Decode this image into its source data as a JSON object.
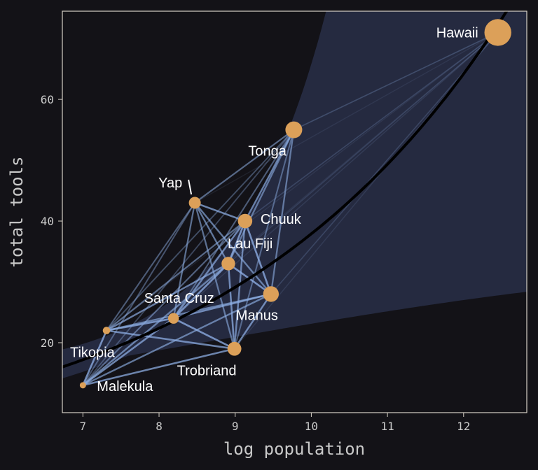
{
  "chart_data": {
    "type": "scatter",
    "xlabel": "log population",
    "ylabel": "total tools",
    "xlim": [
      6.73,
      12.83
    ],
    "ylim": [
      8.5,
      74.5
    ],
    "xticks": [
      7,
      8,
      9,
      10,
      11,
      12
    ],
    "yticks": [
      20,
      40,
      60
    ],
    "grid": false,
    "colors": {
      "background": "#131217",
      "band": "#252a40",
      "frame": "#d6d0c6",
      "point": "#dca059",
      "edge": "#8fb0e6",
      "curve": "#000000",
      "text": "#ffffff",
      "axis_text": "#c9c9c9"
    },
    "points": [
      {
        "name": "Malekula",
        "x": 7.0,
        "y": 13
      },
      {
        "name": "Tikopia",
        "x": 7.31,
        "y": 22
      },
      {
        "name": "Santa Cruz",
        "x": 8.19,
        "y": 24
      },
      {
        "name": "Yap",
        "x": 8.47,
        "y": 43
      },
      {
        "name": "Lau Fiji",
        "x": 8.91,
        "y": 33
      },
      {
        "name": "Trobriand",
        "x": 8.99,
        "y": 19
      },
      {
        "name": "Chuuk",
        "x": 9.13,
        "y": 40
      },
      {
        "name": "Manus",
        "x": 9.47,
        "y": 28
      },
      {
        "name": "Tonga",
        "x": 9.77,
        "y": 55
      },
      {
        "name": "Hawaii",
        "x": 12.45,
        "y": 71
      }
    ],
    "edges": [
      [
        0,
        1,
        0.9
      ],
      [
        0,
        2,
        0.85
      ],
      [
        0,
        3,
        0.5
      ],
      [
        0,
        4,
        0.75
      ],
      [
        0,
        5,
        0.85
      ],
      [
        0,
        6,
        0.6
      ],
      [
        0,
        7,
        0.75
      ],
      [
        0,
        8,
        0.4
      ],
      [
        0,
        9,
        0.12
      ],
      [
        1,
        2,
        0.9
      ],
      [
        1,
        3,
        0.55
      ],
      [
        1,
        4,
        0.8
      ],
      [
        1,
        5,
        0.85
      ],
      [
        1,
        6,
        0.65
      ],
      [
        1,
        7,
        0.75
      ],
      [
        1,
        8,
        0.45
      ],
      [
        1,
        9,
        0.12
      ],
      [
        2,
        3,
        0.7
      ],
      [
        2,
        4,
        0.9
      ],
      [
        2,
        5,
        0.9
      ],
      [
        2,
        6,
        0.8
      ],
      [
        2,
        7,
        0.85
      ],
      [
        2,
        8,
        0.55
      ],
      [
        2,
        9,
        0.15
      ],
      [
        3,
        4,
        0.75
      ],
      [
        3,
        5,
        0.7
      ],
      [
        3,
        6,
        0.85
      ],
      [
        3,
        7,
        0.75
      ],
      [
        3,
        8,
        0.65
      ],
      [
        3,
        9,
        0.12
      ],
      [
        4,
        5,
        0.85
      ],
      [
        4,
        6,
        0.9
      ],
      [
        4,
        7,
        0.9
      ],
      [
        4,
        8,
        0.7
      ],
      [
        4,
        9,
        0.2
      ],
      [
        5,
        6,
        0.8
      ],
      [
        5,
        7,
        0.85
      ],
      [
        5,
        8,
        0.55
      ],
      [
        5,
        9,
        0.15
      ],
      [
        6,
        7,
        0.9
      ],
      [
        6,
        8,
        0.75
      ],
      [
        6,
        9,
        0.25
      ],
      [
        7,
        8,
        0.7
      ],
      [
        7,
        9,
        0.25
      ],
      [
        8,
        9,
        0.3
      ]
    ]
  }
}
